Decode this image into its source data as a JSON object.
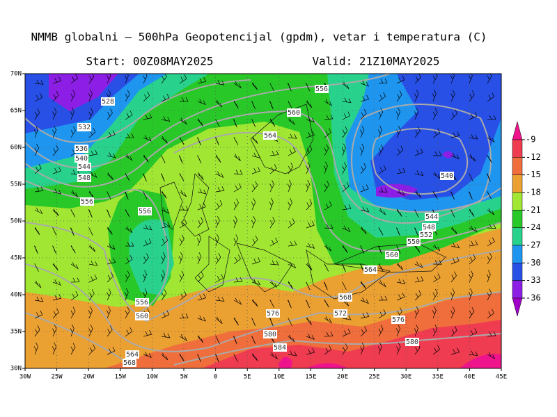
{
  "header": {
    "title": "NMMB globalni — 500hPa Geopotencijal (gpdm), vetar i temperatura (C)",
    "start": "Start: 00Z08MAY2025",
    "valid": "Valid: 21Z10MAY2025"
  },
  "map": {
    "lonlim": [
      -30,
      45
    ],
    "latlim": [
      30,
      70
    ],
    "lonticks": [
      {
        "value": -30,
        "label": "30W"
      },
      {
        "value": -25,
        "label": "25W"
      },
      {
        "value": -20,
        "label": "20W"
      },
      {
        "value": -15,
        "label": "15W"
      },
      {
        "value": -10,
        "label": "10W"
      },
      {
        "value": -5,
        "label": "5W"
      },
      0,
      {
        "value": 5,
        "label": "5E"
      },
      {
        "value": 10,
        "label": "10E"
      },
      {
        "value": 15,
        "label": "15E"
      },
      {
        "value": 20,
        "label": "20E"
      },
      {
        "value": 25,
        "label": "25E"
      },
      {
        "value": 30,
        "label": "30E"
      },
      {
        "value": 35,
        "label": "35E"
      },
      {
        "value": 40,
        "label": "40E"
      },
      {
        "value": 45,
        "label": "45E"
      }
    ],
    "latticks": [
      {
        "value": 30,
        "label": "30N"
      },
      {
        "value": 35,
        "label": "35N"
      },
      {
        "value": 40,
        "label": "40N"
      },
      {
        "value": 45,
        "label": "45N"
      },
      {
        "value": 50,
        "label": "50N"
      },
      {
        "value": 55,
        "label": "55N"
      },
      {
        "value": 60,
        "label": "60N"
      },
      {
        "value": 65,
        "label": "65N"
      },
      {
        "value": 70,
        "label": "70N"
      }
    ],
    "contour_labels": [
      "528",
      "532",
      "536",
      "540",
      "544",
      "548",
      "556",
      "556",
      "556",
      "560",
      "564",
      "568",
      "556",
      "560",
      "564",
      "576",
      "580",
      "584",
      "568",
      "572",
      "576",
      "580",
      "564",
      "560",
      "550",
      "552",
      "548",
      "544",
      "540"
    ]
  },
  "legend": {
    "ticks": [
      -9,
      -12,
      -15,
      -18,
      -21,
      -24,
      -27,
      -30,
      -33,
      -36
    ],
    "colors": [
      "#f0148c",
      "#f03c50",
      "#f06e3c",
      "#eba032",
      "#a0e632",
      "#28c828",
      "#28d28c",
      "#1e96f0",
      "#2850e6",
      "#8c1ee6",
      "#a000c8"
    ]
  }
}
